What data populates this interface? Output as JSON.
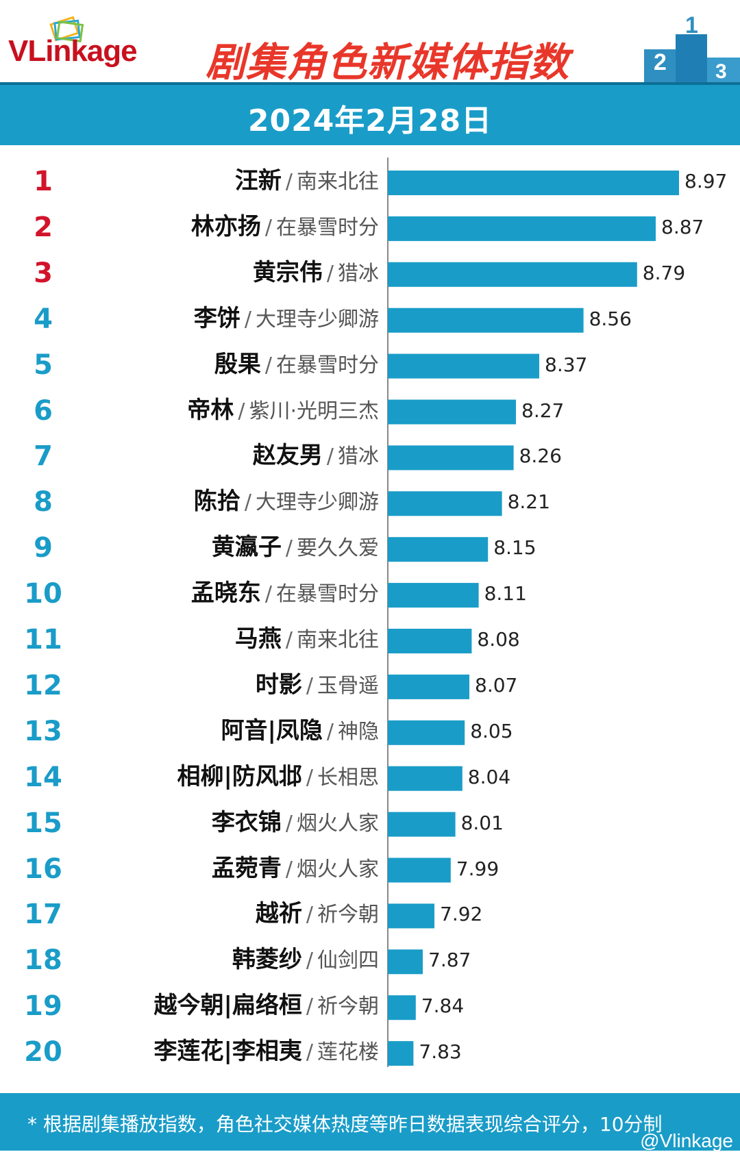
{
  "brand": {
    "logo_text": "VLinkage"
  },
  "header": {
    "title": "剧集角色新媒体指数",
    "date": "2024年2月28日"
  },
  "colors": {
    "accent": "#1a9cc8",
    "top_rank": "#d2142b",
    "rank": "#1a9cc8",
    "title": "#e8372a",
    "logo": "#c8101e"
  },
  "chart_data": {
    "type": "bar",
    "orientation": "horizontal",
    "title": "剧集角色新媒体指数",
    "categories": [
      "汪新",
      "林亦扬",
      "黄宗伟",
      "李饼",
      "殷果",
      "帝林",
      "赵友男",
      "陈拾",
      "黄瀛子",
      "孟晓东",
      "马燕",
      "时影",
      "阿音|凤隐",
      "相柳|防风邶",
      "李衣锦",
      "孟菀青",
      "越祈",
      "韩菱纱",
      "越今朝|扁络桓",
      "李莲花|李相夷"
    ],
    "shows": [
      "南来北往",
      "在暴雪时分",
      "猎冰",
      "大理寺少卿游",
      "在暴雪时分",
      "紫川·光明三杰",
      "猎冰",
      "大理寺少卿游",
      "要久久爱",
      "在暴雪时分",
      "南来北往",
      "玉骨遥",
      "神隐",
      "长相思",
      "烟火人家",
      "烟火人家",
      "祈今朝",
      "仙剑四",
      "祈今朝",
      "莲花楼"
    ],
    "ranks": [
      "1",
      "2",
      "3",
      "4",
      "5",
      "6",
      "7",
      "8",
      "9",
      "10",
      "11",
      "12",
      "13",
      "14",
      "15",
      "16",
      "17",
      "18",
      "19",
      "20"
    ],
    "values": [
      8.97,
      8.87,
      8.79,
      8.56,
      8.37,
      8.27,
      8.26,
      8.21,
      8.15,
      8.11,
      8.08,
      8.07,
      8.05,
      8.04,
      8.01,
      7.99,
      7.92,
      7.87,
      7.84,
      7.83
    ],
    "value_labels": [
      "8.97",
      "8.87",
      "8.79",
      "8.56",
      "8.37",
      "8.27",
      "8.26",
      "8.21",
      "8.15",
      "8.11",
      "8.08",
      "8.07",
      "8.05",
      "8.04",
      "8.01",
      "7.99",
      "7.92",
      "7.87",
      "7.84",
      "7.83"
    ],
    "xlim": [
      7.72,
      8.97
    ],
    "grid": false,
    "legend": "none"
  },
  "footer": {
    "note": "* 根据剧集播放指数，角色社交媒体热度等昨日数据表现综合评分，10分制",
    "watermark": "@Vlinkage"
  }
}
